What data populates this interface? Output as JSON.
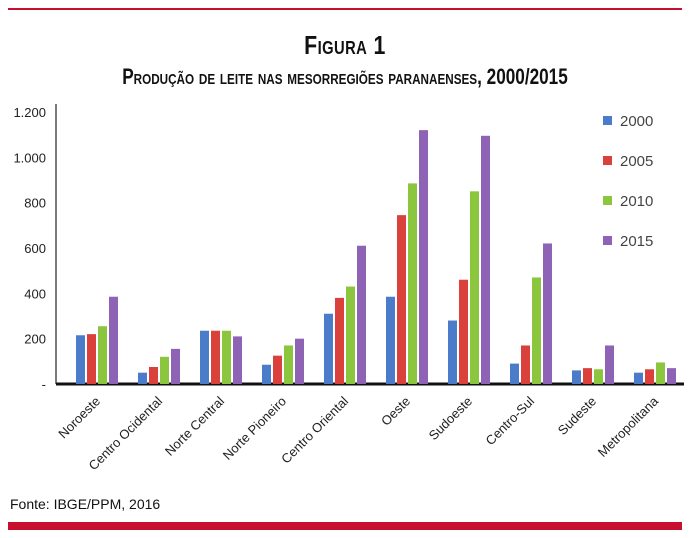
{
  "figure": {
    "label": "Figura 1",
    "title": "Produção de leite nas mesorregiões paranaenses, 2000/2015",
    "source": "Fonte: IBGE/PPM, 2016"
  },
  "chart_data": {
    "type": "bar",
    "categories": [
      "Noroeste",
      "Centro Ocidental",
      "Norte Central",
      "Norte Pioneiro",
      "Centro Oriental",
      "Oeste",
      "Sudoeste",
      "Centro-Sul",
      "Sudeste",
      "Metropolitana"
    ],
    "series": [
      {
        "name": "2000",
        "color": "#4a7cc9",
        "values": [
          215,
          50,
          235,
          85,
          310,
          385,
          280,
          90,
          60,
          50
        ]
      },
      {
        "name": "2005",
        "color": "#d9413a",
        "values": [
          220,
          75,
          235,
          125,
          380,
          745,
          460,
          170,
          70,
          65
        ]
      },
      {
        "name": "2010",
        "color": "#8cc63f",
        "values": [
          255,
          120,
          235,
          170,
          430,
          885,
          850,
          470,
          65,
          95
        ]
      },
      {
        "name": "2015",
        "color": "#8e63b5",
        "values": [
          385,
          155,
          210,
          200,
          610,
          1120,
          1095,
          620,
          170,
          70
        ]
      }
    ],
    "yticks": [
      {
        "value": 0,
        "label": "-"
      },
      {
        "value": 200,
        "label": "200"
      },
      {
        "value": 400,
        "label": "400"
      },
      {
        "value": 600,
        "label": "600"
      },
      {
        "value": 800,
        "label": "800"
      },
      {
        "value": 1000,
        "label": "1.000"
      },
      {
        "value": 1200,
        "label": "1.200"
      }
    ],
    "ylim": [
      0,
      1200
    ],
    "grid": false,
    "legend_position": "top-right",
    "title": "Produção de leite nas mesorregiões paranaenses, 2000/2015",
    "xlabel": "",
    "ylabel": ""
  }
}
